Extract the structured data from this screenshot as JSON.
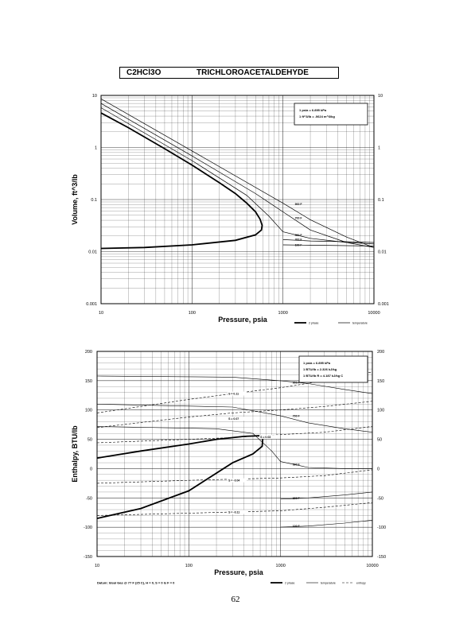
{
  "header": {
    "formula": "C2HCl3O",
    "name": "TRICHLOROACETALDEHYDE"
  },
  "page_number": "62",
  "volume_chart": {
    "ylabel": "Volume, ft^3/lb",
    "xlabel": "Pressure, psia",
    "xticks": [
      "10",
      "100",
      "1000",
      "10000"
    ],
    "yticks": [
      "10",
      "1",
      "0.1",
      "0.01",
      "0.001"
    ],
    "note_lines": [
      "1 psia = 6.895 kPa",
      "1 ft^3/lb = .0624 m^3/kg"
    ],
    "legend": [
      "2 phase",
      "temperature"
    ],
    "isotherm_labels": [
      "900 F",
      "700 F",
      "500 F",
      "300 F",
      "100 F"
    ]
  },
  "enthalpy_chart": {
    "ylabel": "Enthalpy, BTU/lb",
    "xlabel": "Pressure, psia",
    "xticks": [
      "10",
      "100",
      "1000",
      "10000"
    ],
    "yticks": [
      "200",
      "150",
      "100",
      "50",
      "0",
      "-50",
      "-100",
      "-150"
    ],
    "note_lines": [
      "1 psia = 6.895 kPa",
      "1 BTU/lb = 2.326 kJ/kg",
      "1 BTU/lb R = 4.187 kJ/kg C"
    ],
    "legend": [
      "2 phase",
      "temperature",
      "entropy"
    ],
    "isotherm_labels": [
      "900 F",
      "700 F",
      "500 F",
      "300 F",
      "100 F"
    ],
    "entropy_labels": [
      "S = 0.11",
      "S = 0.07",
      "S = 0.03",
      "S = -0.04",
      "S = -0.11"
    ],
    "datum": "Datum: Ideal Gas @ 77 F (25 C), H = 0, S = 0 Is F = 0"
  },
  "chart_data": [
    {
      "type": "line",
      "title": "TRICHLOROACETALDEHYDE",
      "xlabel": "Pressure, psia",
      "ylabel": "Volume, ft^3/lb",
      "xscale": "log",
      "yscale": "log",
      "xlim": [
        10,
        10000
      ],
      "ylim": [
        0.001,
        10
      ],
      "grid": true,
      "legend_placement": "bottom-right",
      "series": [
        {
          "name": "2 phase",
          "points": [
            [
              10,
              4.6
            ],
            [
              20,
              2.4
            ],
            [
              50,
              0.95
            ],
            [
              100,
              0.46
            ],
            [
              200,
              0.21
            ],
            [
              300,
              0.13
            ],
            [
              400,
              0.085
            ],
            [
              500,
              0.058
            ],
            [
              560,
              0.042
            ],
            [
              590,
              0.032
            ],
            [
              580,
              0.026
            ],
            [
              500,
              0.021
            ],
            [
              300,
              0.0165
            ],
            [
              100,
              0.0135
            ],
            [
              30,
              0.012
            ],
            [
              10,
              0.0115
            ]
          ]
        },
        {
          "name": "900 F",
          "points": [
            [
              10,
              8.6
            ],
            [
              100,
              0.86
            ],
            [
              1000,
              0.085
            ],
            [
              2000,
              0.041
            ],
            [
              5000,
              0.019
            ],
            [
              10000,
              0.012
            ]
          ]
        },
        {
          "name": "700 F",
          "points": [
            [
              10,
              7.0
            ],
            [
              100,
              0.69
            ],
            [
              500,
              0.13
            ],
            [
              1000,
              0.058
            ],
            [
              2000,
              0.026
            ],
            [
              5000,
              0.015
            ],
            [
              10000,
              0.012
            ]
          ]
        },
        {
          "name": "500 F",
          "points": [
            [
              10,
              5.8
            ],
            [
              100,
              0.56
            ],
            [
              400,
              0.12
            ],
            [
              700,
              0.048
            ],
            [
              1000,
              0.024
            ],
            [
              2000,
              0.018
            ],
            [
              5000,
              0.015
            ],
            [
              10000,
              0.014
            ]
          ]
        },
        {
          "name": "300 F",
          "points": [
            [
              1000,
              0.017
            ],
            [
              2000,
              0.016
            ],
            [
              5000,
              0.0155
            ],
            [
              10000,
              0.015
            ]
          ]
        },
        {
          "name": "100 F",
          "points": [
            [
              1000,
              0.0135
            ],
            [
              2000,
              0.0133
            ],
            [
              5000,
              0.013
            ],
            [
              10000,
              0.0128
            ]
          ]
        }
      ]
    },
    {
      "type": "line",
      "title": "TRICHLOROACETALDEHYDE",
      "xlabel": "Pressure, psia",
      "ylabel": "Enthalpy, BTU/lb",
      "xscale": "log",
      "xlim": [
        10,
        10000
      ],
      "ylim": [
        -150,
        200
      ],
      "grid": true,
      "legend_placement": "bottom-right",
      "series": [
        {
          "name": "2 phase",
          "points": [
            [
              10,
              18
            ],
            [
              30,
              30
            ],
            [
              100,
              42
            ],
            [
              200,
              50
            ],
            [
              400,
              55
            ],
            [
              600,
              56
            ],
            [
              640,
              52
            ],
            [
              630,
              38
            ],
            [
              500,
              25
            ],
            [
              300,
              10
            ],
            [
              100,
              -38
            ],
            [
              30,
              -68
            ],
            [
              10,
              -85
            ]
          ]
        },
        {
          "name": "900 F",
          "points": [
            [
              10,
              158
            ],
            [
              300,
              156
            ],
            [
              1000,
              150
            ],
            [
              2000,
              145
            ],
            [
              5000,
              135
            ],
            [
              10000,
              128
            ]
          ]
        },
        {
          "name": "700 F",
          "points": [
            [
              10,
              110
            ],
            [
              300,
              105
            ],
            [
              1000,
              90
            ],
            [
              2000,
              78
            ],
            [
              5000,
              68
            ],
            [
              10000,
              62
            ]
          ]
        },
        {
          "name": "500 F",
          "points": [
            [
              10,
              72
            ],
            [
              200,
              68
            ],
            [
              500,
              60
            ],
            [
              800,
              30
            ],
            [
              1000,
              12
            ],
            [
              2000,
              2
            ],
            [
              5000,
              0
            ],
            [
              10000,
              0
            ]
          ]
        },
        {
          "name": "300 F",
          "points": [
            [
              1000,
              -52
            ],
            [
              2000,
              -50
            ],
            [
              5000,
              -45
            ],
            [
              10000,
              -40
            ]
          ]
        },
        {
          "name": "100 F",
          "points": [
            [
              1000,
              -100
            ],
            [
              2000,
              -98
            ],
            [
              5000,
              -93
            ],
            [
              10000,
              -88
            ]
          ]
        },
        {
          "name": "S = 0.11",
          "points": [
            [
              10,
              95
            ],
            [
              100,
              118
            ],
            [
              300,
              128
            ],
            [
              1000,
              138
            ],
            [
              3000,
              150
            ],
            [
              10000,
              165
            ]
          ]
        },
        {
          "name": "S = 0.07",
          "points": [
            [
              10,
              70
            ],
            [
              100,
              88
            ],
            [
              300,
              95
            ],
            [
              1000,
              100
            ],
            [
              3000,
              106
            ],
            [
              10000,
              115
            ]
          ]
        },
        {
          "name": "S = 0.03",
          "points": [
            [
              10,
              44
            ],
            [
              100,
              50
            ],
            [
              300,
              53
            ],
            [
              1000,
              58
            ],
            [
              3000,
              62
            ],
            [
              10000,
              72
            ]
          ]
        },
        {
          "name": "S = -0.04",
          "points": [
            [
              10,
              -25
            ],
            [
              100,
              -20
            ],
            [
              300,
              -18
            ],
            [
              1000,
              -16
            ],
            [
              3000,
              -12
            ],
            [
              10000,
              -2
            ]
          ]
        },
        {
          "name": "S = -0.11",
          "points": [
            [
              10,
              -80
            ],
            [
              100,
              -76
            ],
            [
              300,
              -74
            ],
            [
              1000,
              -72
            ],
            [
              3000,
              -66
            ],
            [
              10000,
              -58
            ]
          ]
        }
      ]
    }
  ]
}
